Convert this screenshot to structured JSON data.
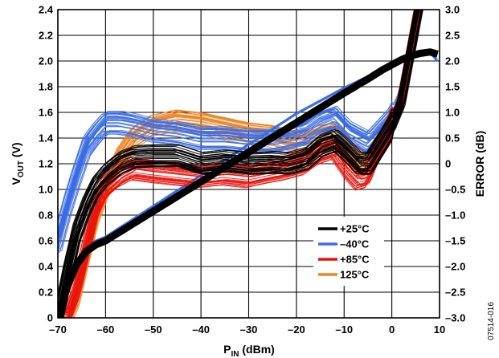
{
  "chart_data": {
    "type": "line",
    "xlabel": "P",
    "xlabel_sub": "IN",
    "xlabel_unit": " (dBm)",
    "ylabel": "V",
    "ylabel_sub": "OUT",
    "ylabel_unit": " (V)",
    "y2label": "ERROR (dB)",
    "xlim": [
      -70,
      10
    ],
    "ylim": [
      0,
      2.4
    ],
    "y2lim": [
      -3.0,
      3.0
    ],
    "x_ticks": [
      "–70",
      "–60",
      "–50",
      "–40",
      "–30",
      "–20",
      "–10",
      "0",
      "10"
    ],
    "y_ticks": [
      "0",
      "0.2",
      "0.4",
      "0.6",
      "0.8",
      "1.0",
      "1.2",
      "1.4",
      "1.6",
      "1.8",
      "2.0",
      "2.2",
      "2.4"
    ],
    "y2_ticks": [
      "–3.0",
      "–2.5",
      "–2.0",
      "–1.5",
      "–1.0",
      "–0.5",
      "0",
      "0.5",
      "1.0",
      "1.5",
      "2.0",
      "2.5",
      "3.0"
    ],
    "grid": true,
    "legend_position": "bottom-right",
    "figure_id": "07514-016",
    "series": [
      {
        "name": "+25°C",
        "color": "#000000",
        "vout": {
          "x": [
            -70,
            -68,
            -66,
            -64,
            -62,
            -60,
            -50,
            -40,
            -30,
            -20,
            -10,
            -5,
            -2,
            0,
            2,
            4,
            6,
            8,
            10
          ],
          "y": [
            0.0,
            0.25,
            0.42,
            0.52,
            0.57,
            0.6,
            0.83,
            1.06,
            1.29,
            1.52,
            1.75,
            1.86,
            1.93,
            1.97,
            2.01,
            2.04,
            2.06,
            2.07,
            2.05
          ]
        },
        "error": {
          "x": [
            -70,
            -68,
            -66,
            -64,
            -62,
            -60,
            -57,
            -54,
            -50,
            -45,
            -40,
            -35,
            -30,
            -25,
            -22,
            -18,
            -15,
            -12,
            -9,
            -7,
            -5,
            -3,
            -1,
            0,
            2,
            4,
            6,
            8
          ],
          "y": [
            -3.0,
            -2.1,
            -1.3,
            -0.8,
            -0.42,
            -0.2,
            0.02,
            0.13,
            0.15,
            0.15,
            0.0,
            0.05,
            0.0,
            0.02,
            0.0,
            0.1,
            0.35,
            0.45,
            0.2,
            0.0,
            0.0,
            0.3,
            0.6,
            0.75,
            1.2,
            2.2,
            3.2,
            4.2
          ]
        }
      },
      {
        "name": "–40°C",
        "color": "#3b6de6",
        "vout": {
          "x": [
            -70,
            -68,
            -66,
            -64,
            -62,
            -60,
            -50,
            -40,
            -30,
            -20,
            -10,
            -5,
            -2,
            0,
            2,
            4,
            6,
            8,
            10
          ],
          "y": [
            0.02,
            0.28,
            0.45,
            0.55,
            0.6,
            0.63,
            0.87,
            1.11,
            1.35,
            1.59,
            1.79,
            1.88,
            1.94,
            1.98,
            2.02,
            2.05,
            2.07,
            2.07,
            1.98
          ]
        },
        "error": {
          "x": [
            -70,
            -68,
            -66,
            -64,
            -62,
            -60,
            -57,
            -54,
            -50,
            -45,
            -40,
            -35,
            -30,
            -25,
            -22,
            -18,
            -15,
            -12,
            -9,
            -7,
            -5,
            -3,
            -1,
            0,
            2,
            4,
            6,
            8
          ],
          "y": [
            -1.5,
            -0.8,
            -0.2,
            0.35,
            0.6,
            0.8,
            0.8,
            0.75,
            0.65,
            0.6,
            0.5,
            0.5,
            0.45,
            0.45,
            0.5,
            0.6,
            0.8,
            0.9,
            0.6,
            0.5,
            0.4,
            0.6,
            0.8,
            0.9,
            1.3,
            2.2,
            3.2,
            4.2
          ]
        }
      },
      {
        "name": "+85°C",
        "color": "#e8140c",
        "vout": {
          "x": [
            -70,
            -68,
            -66,
            -64,
            -62,
            -60,
            -50,
            -40,
            -30,
            -20,
            -10,
            -5,
            -2,
            0,
            2,
            4,
            6,
            8,
            10
          ],
          "y": [
            0.0,
            0.2,
            0.38,
            0.5,
            0.56,
            0.59,
            0.82,
            1.05,
            1.28,
            1.51,
            1.74,
            1.85,
            1.92,
            1.96,
            2.0,
            2.03,
            2.05,
            2.07,
            2.06
          ]
        },
        "error": {
          "x": [
            -70,
            -68,
            -66,
            -64,
            -62,
            -60,
            -57,
            -54,
            -50,
            -45,
            -40,
            -35,
            -30,
            -25,
            -22,
            -18,
            -15,
            -12,
            -9,
            -7,
            -5,
            -3,
            -1,
            0,
            2,
            4,
            6,
            8
          ],
          "y": [
            -3.0,
            -3.0,
            -2.5,
            -1.7,
            -0.9,
            -0.5,
            -0.25,
            -0.1,
            -0.15,
            -0.2,
            -0.25,
            -0.2,
            -0.25,
            -0.15,
            -0.1,
            0.0,
            0.2,
            0.3,
            -0.1,
            -0.3,
            -0.25,
            0.2,
            0.5,
            0.7,
            1.2,
            2.2,
            3.2,
            4.2
          ]
        }
      },
      {
        "name": "125°C",
        "color": "#f08424",
        "vout": {
          "x": [
            -70,
            -68,
            -66,
            -64,
            -62,
            -60,
            -50,
            -40,
            -30,
            -20,
            -10,
            -5,
            -2,
            0,
            2,
            4,
            6,
            8,
            10
          ],
          "y": [
            0.0,
            0.19,
            0.37,
            0.49,
            0.55,
            0.58,
            0.81,
            1.04,
            1.27,
            1.5,
            1.73,
            1.84,
            1.91,
            1.95,
            1.99,
            2.02,
            2.05,
            2.07,
            2.07
          ]
        },
        "error": {
          "x": [
            -70,
            -68,
            -66,
            -64,
            -62,
            -60,
            -57,
            -54,
            -50,
            -45,
            -40,
            -35,
            -30,
            -25,
            -22,
            -18,
            -15,
            -12,
            -9,
            -7,
            -5,
            -3,
            -1,
            0,
            2,
            4,
            6,
            8
          ],
          "y": [
            -3.0,
            -3.0,
            -2.6,
            -1.8,
            -1.0,
            -0.5,
            0.1,
            0.5,
            0.75,
            0.85,
            0.8,
            0.7,
            0.6,
            0.55,
            0.45,
            0.45,
            0.55,
            0.6,
            0.3,
            0.1,
            0.0,
            0.3,
            0.6,
            0.8,
            1.2,
            2.2,
            3.2,
            4.2
          ]
        }
      }
    ]
  }
}
